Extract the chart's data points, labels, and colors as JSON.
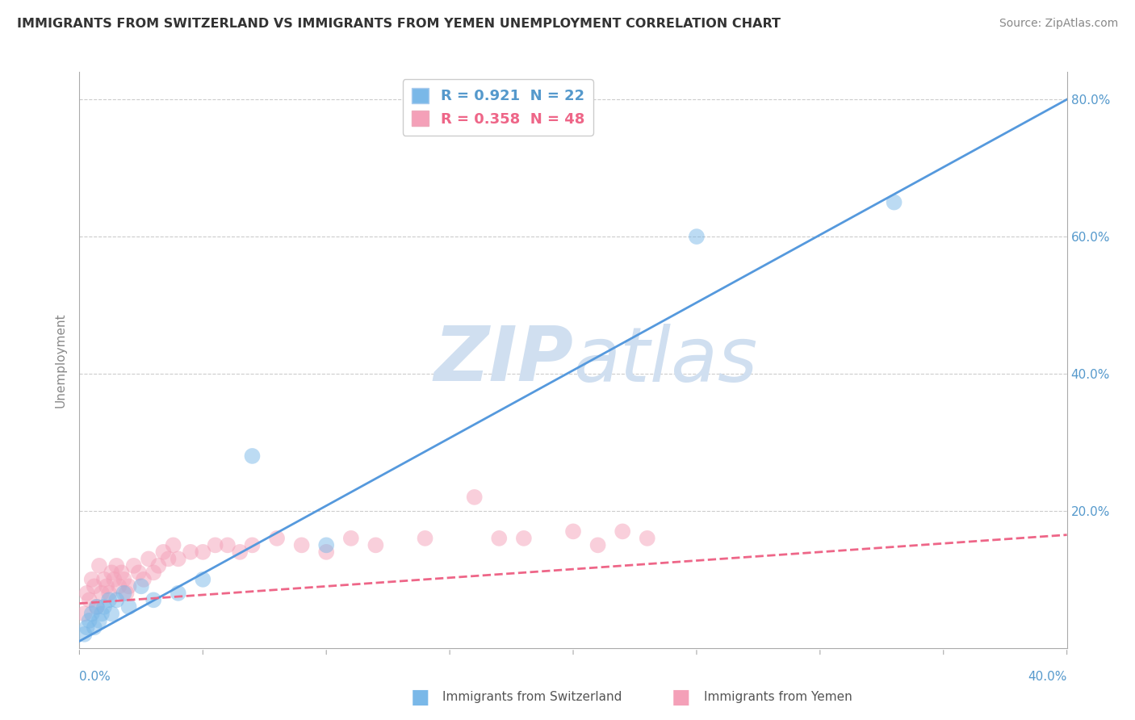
{
  "title": "IMMIGRANTS FROM SWITZERLAND VS IMMIGRANTS FROM YEMEN UNEMPLOYMENT CORRELATION CHART",
  "source": "Source: ZipAtlas.com",
  "ylabel": "Unemployment",
  "y_ticks": [
    0.0,
    0.2,
    0.4,
    0.6,
    0.8
  ],
  "y_tick_labels_right": [
    "",
    "20.0%",
    "40.0%",
    "60.0%",
    "80.0%"
  ],
  "xlim": [
    0.0,
    0.4
  ],
  "ylim": [
    0.0,
    0.84
  ],
  "switzerland_R": 0.921,
  "switzerland_N": 22,
  "yemen_R": 0.358,
  "yemen_N": 48,
  "swiss_color": "#7ab8e8",
  "yemen_color": "#f4a0b8",
  "swiss_line_color": "#5599dd",
  "yemen_line_color": "#ee6688",
  "watermark_color": "#d0dff0",
  "swiss_line_x0": 0.0,
  "swiss_line_y0": 0.01,
  "swiss_line_x1": 0.4,
  "swiss_line_y1": 0.8,
  "yemen_line_x0": 0.0,
  "yemen_line_y0": 0.065,
  "yemen_line_x1": 0.4,
  "yemen_line_y1": 0.165,
  "swiss_x": [
    0.002,
    0.003,
    0.004,
    0.005,
    0.006,
    0.007,
    0.008,
    0.009,
    0.01,
    0.012,
    0.013,
    0.015,
    0.018,
    0.02,
    0.025,
    0.03,
    0.04,
    0.05,
    0.07,
    0.1,
    0.25,
    0.33
  ],
  "swiss_y": [
    0.02,
    0.03,
    0.04,
    0.05,
    0.03,
    0.06,
    0.04,
    0.05,
    0.06,
    0.07,
    0.05,
    0.07,
    0.08,
    0.06,
    0.09,
    0.07,
    0.08,
    0.1,
    0.28,
    0.15,
    0.6,
    0.65
  ],
  "yemen_x": [
    0.002,
    0.003,
    0.004,
    0.005,
    0.006,
    0.007,
    0.008,
    0.009,
    0.01,
    0.011,
    0.012,
    0.013,
    0.014,
    0.015,
    0.016,
    0.017,
    0.018,
    0.019,
    0.02,
    0.022,
    0.024,
    0.026,
    0.028,
    0.03,
    0.032,
    0.034,
    0.036,
    0.038,
    0.04,
    0.045,
    0.05,
    0.055,
    0.06,
    0.065,
    0.07,
    0.08,
    0.09,
    0.1,
    0.11,
    0.12,
    0.14,
    0.16,
    0.17,
    0.18,
    0.2,
    0.21,
    0.22,
    0.23
  ],
  "yemen_y": [
    0.05,
    0.08,
    0.07,
    0.1,
    0.09,
    0.06,
    0.12,
    0.08,
    0.1,
    0.09,
    0.08,
    0.11,
    0.1,
    0.12,
    0.09,
    0.11,
    0.1,
    0.08,
    0.09,
    0.12,
    0.11,
    0.1,
    0.13,
    0.11,
    0.12,
    0.14,
    0.13,
    0.15,
    0.13,
    0.14,
    0.14,
    0.15,
    0.15,
    0.14,
    0.15,
    0.16,
    0.15,
    0.14,
    0.16,
    0.15,
    0.16,
    0.22,
    0.16,
    0.16,
    0.17,
    0.15,
    0.17,
    0.16
  ]
}
